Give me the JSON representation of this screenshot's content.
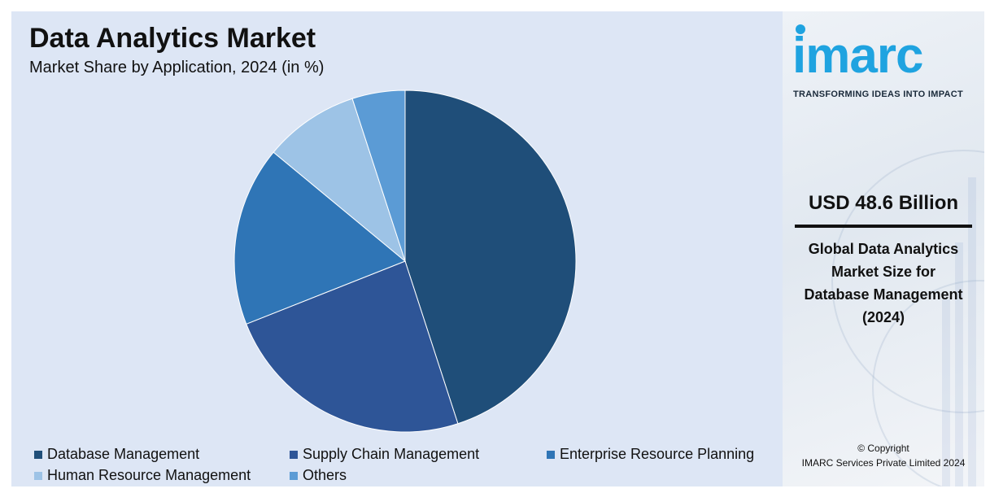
{
  "chart_data": {
    "type": "pie",
    "title": "Data Analytics Market",
    "subtitle": "Market Share by Application, 2024 (in %)",
    "categories": [
      "Database Management",
      "Supply Chain Management",
      "Enterprise Resource Planning",
      "Human Resource Management",
      "Others"
    ],
    "values": [
      45,
      24,
      17,
      9,
      5
    ],
    "colors": [
      "#1f4e79",
      "#2e5597",
      "#2f75b6",
      "#9dc3e6",
      "#5b9bd5"
    ],
    "legend_position": "bottom"
  },
  "brand": {
    "logo_text": "imarc",
    "tagline": "TRANSFORMING IDEAS INTO IMPACT",
    "accent_color": "#1fa3e0"
  },
  "highlight": {
    "value": "USD 48.6 Billion",
    "description_lines": [
      "Global Data Analytics",
      "Market Size for",
      "Database Management",
      "(2024)"
    ]
  },
  "footer": {
    "copyright_line1": "© Copyright",
    "copyright_line2": "IMARC Services Private Limited 2024"
  }
}
